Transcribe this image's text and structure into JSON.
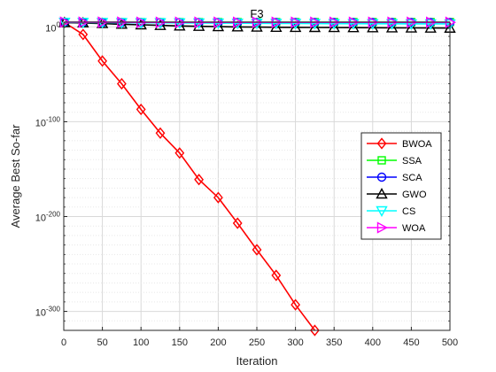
{
  "chart_data": {
    "type": "line",
    "title": "F3",
    "xlabel": "Iteration",
    "ylabel": "Average Best So-far",
    "xlim": [
      0,
      500
    ],
    "ylim_log10": [
      -320,
      5
    ],
    "yscale": "log",
    "grid": true,
    "x_ticks": [
      "0",
      "50",
      "100",
      "150",
      "200",
      "250",
      "300",
      "350",
      "400",
      "450",
      "500"
    ],
    "y_ticks": [
      {
        "base": "10",
        "exp": "0"
      },
      {
        "base": "10",
        "exp": "-100"
      },
      {
        "base": "10",
        "exp": "-200"
      },
      {
        "base": "10",
        "exp": "-300"
      }
    ],
    "legend_position": "right",
    "series": [
      {
        "name": "BWOA",
        "color": "#ff0000",
        "marker": "diamond",
        "x": [
          1,
          25,
          50,
          75,
          100,
          125,
          150,
          175,
          200,
          225,
          250,
          275,
          300,
          325
        ],
        "log10_y": [
          4.5,
          -8,
          -36,
          -60,
          -87,
          -112,
          -133,
          -161,
          -180,
          -207,
          -235,
          -262,
          -293,
          -320
        ]
      },
      {
        "name": "SSA",
        "color": "#00ff00",
        "marker": "square",
        "x": [
          1,
          25,
          50,
          75,
          100,
          125,
          150,
          175,
          200,
          225,
          250,
          275,
          300,
          325,
          350,
          375,
          400,
          425,
          450,
          475,
          500
        ],
        "log10_y": [
          5,
          5,
          5,
          5,
          5,
          5,
          5,
          5,
          5,
          5,
          5,
          5,
          5,
          5,
          5,
          5,
          5,
          5,
          5,
          5,
          5
        ]
      },
      {
        "name": "SCA",
        "color": "#0000ff",
        "marker": "circle",
        "x": [
          1,
          25,
          50,
          75,
          100,
          125,
          150,
          175,
          200,
          225,
          250,
          275,
          300,
          325,
          350,
          375,
          400,
          425,
          450,
          475,
          500
        ],
        "log10_y": [
          4.6,
          4.6,
          4.6,
          4.6,
          4.6,
          4.6,
          4.6,
          4.6,
          4.6,
          4.6,
          4.6,
          4.6,
          4.6,
          4.6,
          4.6,
          4.6,
          4.6,
          4.6,
          4.6,
          4.6,
          4.6
        ]
      },
      {
        "name": "GWO",
        "color": "#000000",
        "marker": "triangle-up",
        "x": [
          1,
          25,
          50,
          75,
          100,
          125,
          150,
          175,
          200,
          225,
          250,
          275,
          300,
          325,
          350,
          375,
          400,
          425,
          450,
          475,
          500
        ],
        "log10_y": [
          4.5,
          4.2,
          3.5,
          2.8,
          2.2,
          1.6,
          1.0,
          0.6,
          0.3,
          0,
          -0.2,
          -0.4,
          -0.5,
          -0.6,
          -0.7,
          -0.8,
          -0.9,
          -1.0,
          -1.1,
          -1.2,
          -1.3
        ]
      },
      {
        "name": "CS",
        "color": "#00ffff",
        "marker": "triangle-down",
        "x": [
          1,
          25,
          50,
          75,
          100,
          125,
          150,
          175,
          200,
          225,
          250,
          275,
          300,
          325,
          350,
          375,
          400,
          425,
          450,
          475,
          500
        ],
        "log10_y": [
          4.8,
          4.7,
          4.6,
          4.5,
          4.4,
          4.3,
          4.2,
          4.1,
          4.0,
          3.9,
          3.8,
          3.7,
          3.6,
          3.5,
          3.4,
          3.4,
          3.3,
          3.3,
          3.2,
          3.2,
          3.1
        ]
      },
      {
        "name": "WOA",
        "color": "#ff00ff",
        "marker": "triangle-right",
        "x": [
          1,
          25,
          50,
          75,
          100,
          125,
          150,
          175,
          200,
          225,
          250,
          275,
          300,
          325,
          350,
          375,
          400,
          425,
          450,
          475,
          500
        ],
        "log10_y": [
          5.0,
          4.9,
          4.9,
          4.9,
          4.8,
          4.8,
          4.8,
          4.8,
          4.8,
          4.8,
          4.8,
          4.8,
          4.8,
          4.8,
          4.8,
          4.8,
          4.8,
          4.8,
          4.8,
          4.8,
          4.8
        ]
      }
    ]
  }
}
